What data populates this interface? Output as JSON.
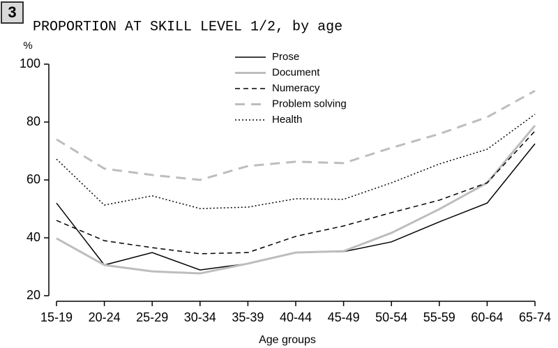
{
  "chart_data": {
    "type": "line",
    "badge": "3",
    "title": "PROPORTION AT SKILL LEVEL 1/2, by age",
    "y_label": "%",
    "x_label": "Age groups",
    "categories": [
      "15-19",
      "20-24",
      "25-29",
      "30-34",
      "35-39",
      "40-44",
      "45-49",
      "50-54",
      "55-59",
      "60-64",
      "65-74"
    ],
    "ylim": [
      20,
      100
    ],
    "yticks": [
      20,
      40,
      60,
      80,
      100
    ],
    "series": [
      {
        "name": "Prose",
        "color": "#000000",
        "width": 1.5,
        "dash": "solid",
        "values": [
          52.0,
          30.6,
          34.9,
          28.9,
          31.1,
          34.9,
          35.2,
          38.6,
          45.5,
          52.0,
          72.5
        ]
      },
      {
        "name": "Document",
        "color": "#bdbdbd",
        "width": 3,
        "dash": "solid",
        "values": [
          39.8,
          30.6,
          28.4,
          27.7,
          31.1,
          34.9,
          35.4,
          41.7,
          49.9,
          59.0,
          78.8
        ]
      },
      {
        "name": "Numeracy",
        "color": "#000000",
        "width": 1.5,
        "dash": "dashed",
        "values": [
          46.0,
          39.0,
          36.6,
          34.5,
          34.9,
          40.5,
          44.1,
          48.7,
          53.0,
          59.0,
          76.9
        ]
      },
      {
        "name": "Problem solving",
        "color": "#bdbdbd",
        "width": 3,
        "dash": "long-dashed",
        "values": [
          74.0,
          63.9,
          61.7,
          60.0,
          64.8,
          66.3,
          65.8,
          71.1,
          75.9,
          81.7,
          90.8
        ]
      },
      {
        "name": "Health",
        "color": "#000000",
        "width": 1.5,
        "dash": "dotted",
        "values": [
          67.2,
          51.3,
          54.5,
          50.1,
          50.6,
          53.5,
          53.3,
          59.0,
          65.5,
          70.6,
          82.7
        ]
      }
    ]
  }
}
